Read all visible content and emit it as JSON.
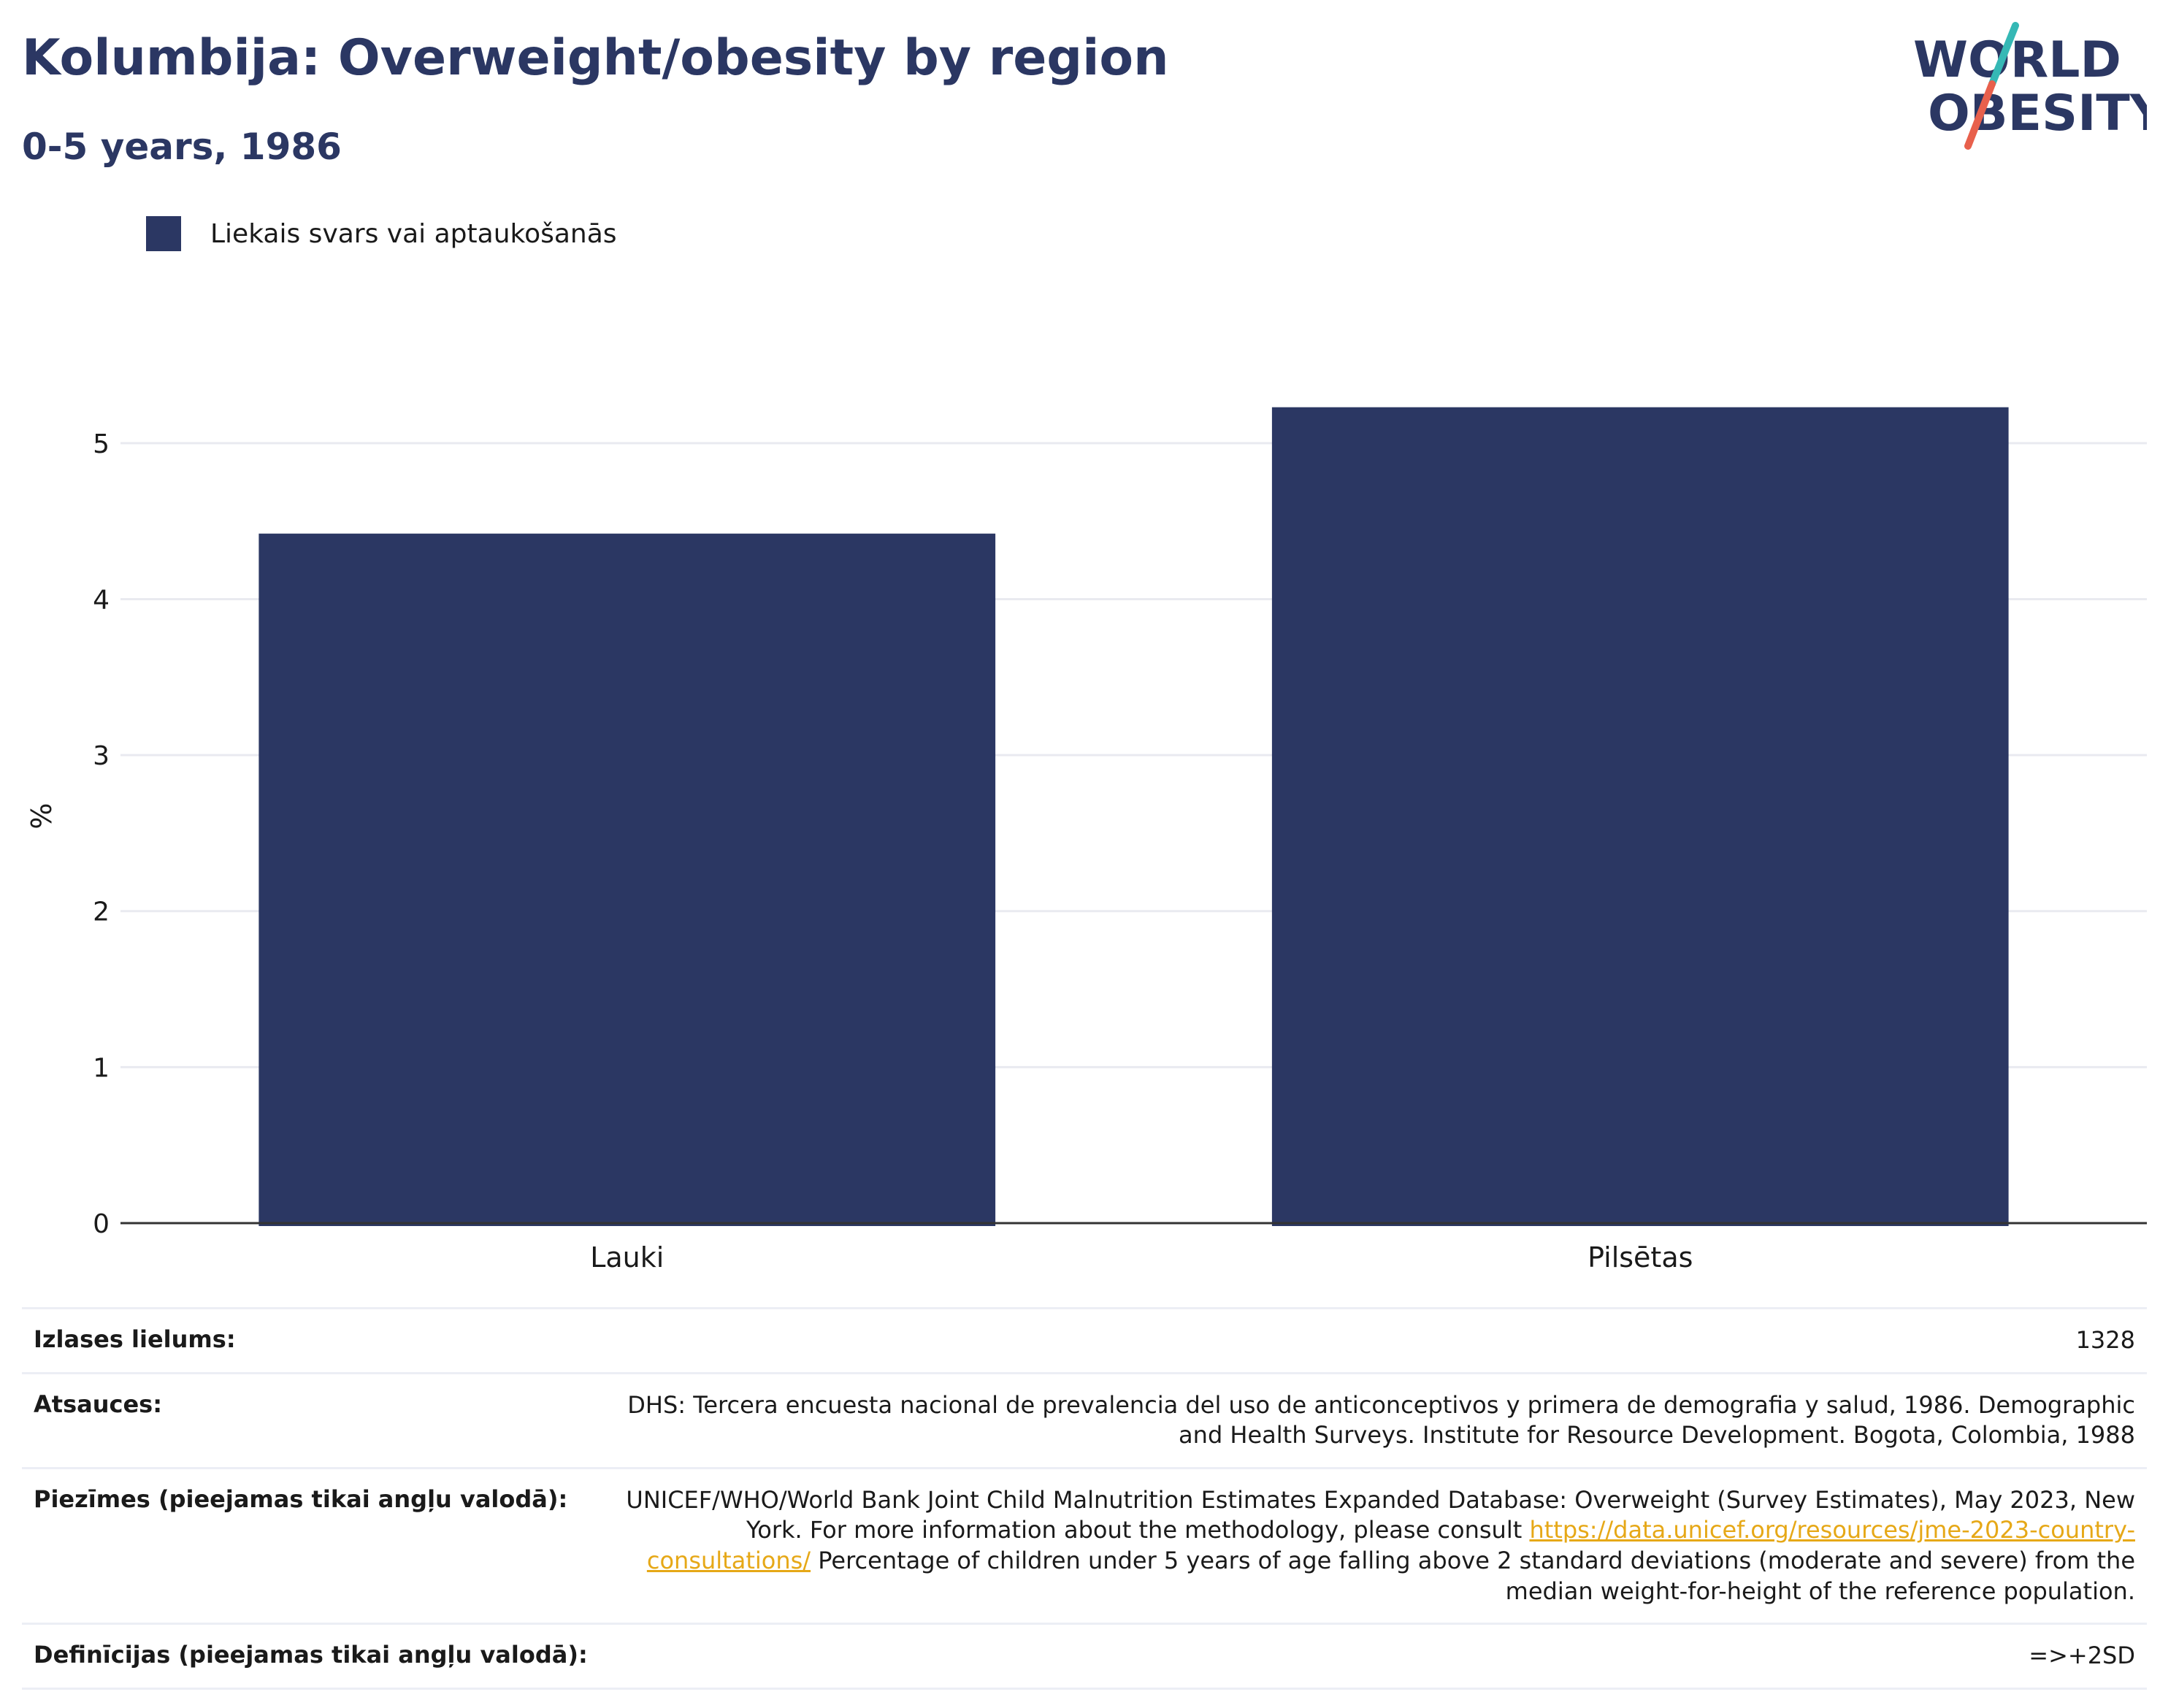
{
  "header": {
    "title": "Kolumbija: Overweight/obesity by region",
    "subtitle": "0-5 years, 1986"
  },
  "logo": {
    "line1": "WORLD",
    "line2": "OBESITY",
    "colors": {
      "text": "#2b3763",
      "teal": "#35b8b5",
      "coral": "#e8604c"
    }
  },
  "colors": {
    "bar": "#2b3763",
    "grid": "#e9eaf0",
    "axis": "#333333",
    "link": "#e6a817"
  },
  "chart_data": {
    "type": "bar",
    "categories": [
      "Lauki",
      "Pilsētas"
    ],
    "series": [
      {
        "name": "Liekais svars vai aptaukošanās",
        "values": [
          4.42,
          5.23
        ]
      }
    ],
    "title": "Kolumbija: Overweight/obesity by region",
    "subtitle": "0-5 years, 1986",
    "xlabel": "",
    "ylabel": "%",
    "ylim": [
      0,
      5.5
    ],
    "yticks": [
      0,
      1,
      2,
      3,
      4,
      5
    ],
    "grid": true,
    "legend_position": "top-left"
  },
  "info": {
    "sample_label": "Izlases lielums:",
    "sample_value": "1328",
    "sources_label": "Atsauces:",
    "sources_value": "DHS: Tercera encuesta nacional de prevalencia del uso de anticonceptivos y primera de demografia y salud, 1986. Demographic and Health Surveys. Institute for Resource Development. Bogota, Colombia, 1988",
    "notes_label": "Piezīmes (pieejamas tikai angļu valodā):",
    "notes_before": "UNICEF/WHO/World Bank Joint Child Malnutrition Estimates Expanded Database: Overweight (Survey Estimates), May 2023, New York. For more information about the methodology, please consult ",
    "notes_link": "https://data.unicef.org/resources/jme-2023-country-consultations/",
    "notes_after": " Percentage of children under 5 years of age falling above 2 standard deviations (moderate and severe) from the median weight-for-height of the reference population.",
    "definitions_label": "Definīcijas (pieejamas tikai angļu valodā):",
    "definitions_value": "=>+2SD"
  }
}
